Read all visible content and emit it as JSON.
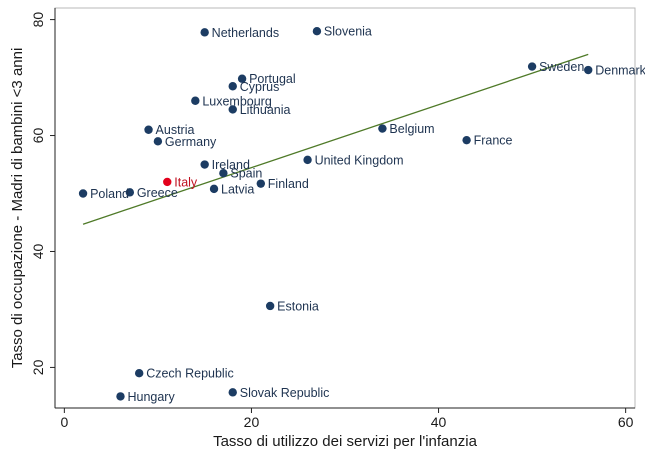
{
  "chart_data": {
    "type": "scatter",
    "title": "",
    "xlabel": "Tasso di utilizzo dei servizi per l'infanzia",
    "ylabel": "Tasso di occupazione - Madri di bambini <3 anni",
    "xlim": [
      -1,
      61
    ],
    "ylim": [
      13,
      82
    ],
    "xticks": [
      0,
      20,
      40,
      60
    ],
    "yticks": [
      20,
      40,
      60,
      80
    ],
    "grid": false,
    "point_color": "#1c3c63",
    "highlight_color": "#e3001b",
    "line_color": "#4f7a28",
    "fit_line": {
      "x": [
        2,
        56
      ],
      "y": [
        44.7,
        74.0
      ]
    },
    "points": [
      {
        "label": "Netherlands",
        "x": 15,
        "y": 77.8
      },
      {
        "label": "Slovenia",
        "x": 27,
        "y": 78.0
      },
      {
        "label": "Portugal",
        "x": 19,
        "y": 69.8
      },
      {
        "label": "Cyprus",
        "x": 18,
        "y": 68.5
      },
      {
        "label": "Luxembourg",
        "x": 14,
        "y": 66.0
      },
      {
        "label": "Lithuania",
        "x": 18,
        "y": 64.5
      },
      {
        "label": "Sweden",
        "x": 50,
        "y": 71.9
      },
      {
        "label": "Denmark",
        "x": 56,
        "y": 71.3
      },
      {
        "label": "Austria",
        "x": 9,
        "y": 61.0
      },
      {
        "label": "Germany",
        "x": 10,
        "y": 59.0
      },
      {
        "label": "Belgium",
        "x": 34,
        "y": 61.2
      },
      {
        "label": "France",
        "x": 43,
        "y": 59.2
      },
      {
        "label": "Ireland",
        "x": 15,
        "y": 55.0
      },
      {
        "label": "United Kingdom",
        "x": 26,
        "y": 55.8
      },
      {
        "label": "Spain",
        "x": 17,
        "y": 53.5
      },
      {
        "label": "Italy",
        "x": 11,
        "y": 52.0,
        "highlight": true
      },
      {
        "label": "Latvia",
        "x": 16,
        "y": 50.8
      },
      {
        "label": "Finland",
        "x": 21,
        "y": 51.7
      },
      {
        "label": "Poland",
        "x": 2,
        "y": 50.0
      },
      {
        "label": "Greece",
        "x": 7,
        "y": 50.2
      },
      {
        "label": "Estonia",
        "x": 22,
        "y": 30.6
      },
      {
        "label": "Czech Republic",
        "x": 8,
        "y": 19.0
      },
      {
        "label": "Slovak Republic",
        "x": 18,
        "y": 15.7
      },
      {
        "label": "Hungary",
        "x": 6,
        "y": 15.0
      }
    ]
  }
}
